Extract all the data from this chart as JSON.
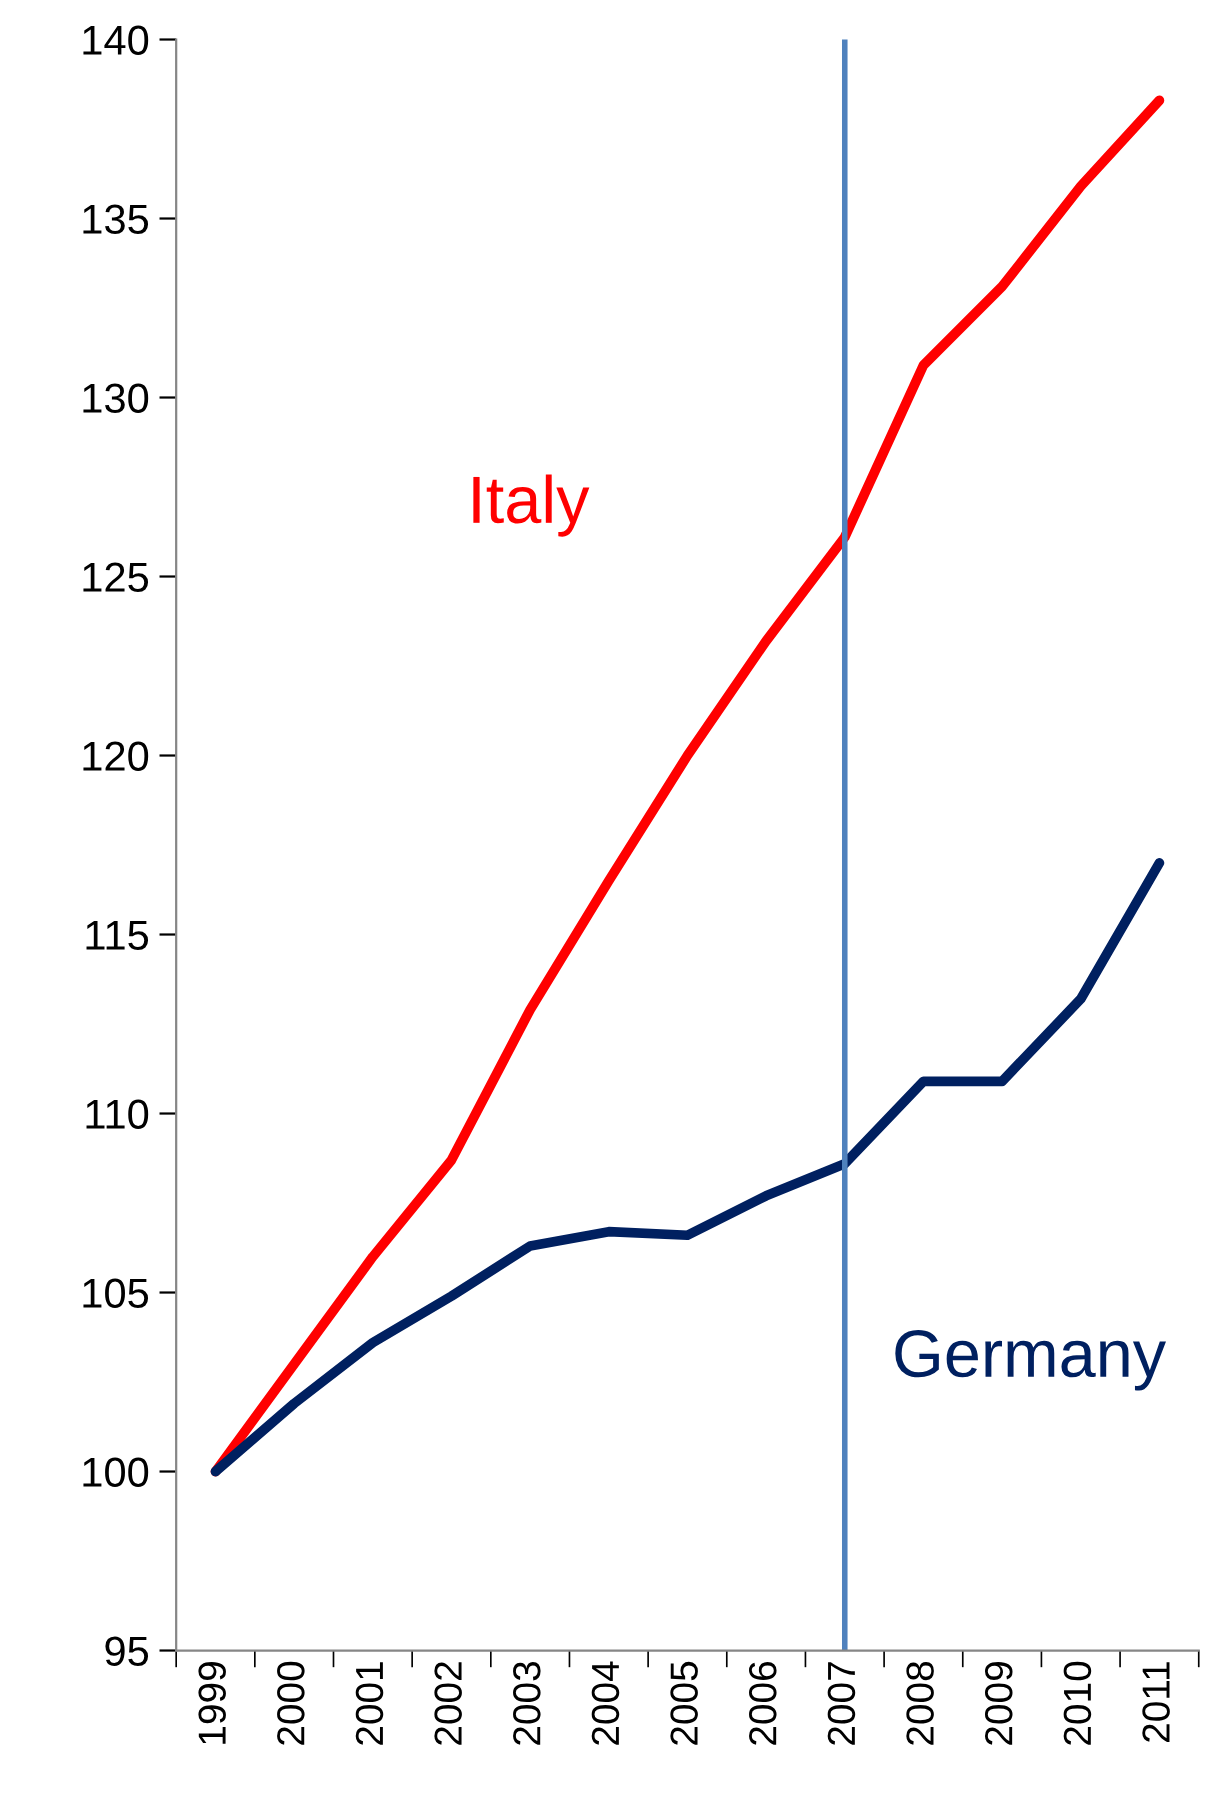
{
  "chart_data": {
    "type": "line",
    "categories": [
      "1999",
      "2000",
      "2001",
      "2002",
      "2003",
      "2004",
      "2005",
      "2006",
      "2007",
      "2008",
      "2009",
      "2010",
      "2011"
    ],
    "series": [
      {
        "name": "Italy",
        "color": "#ff0000",
        "values": [
          100,
          103.0,
          106.0,
          108.7,
          112.9,
          116.5,
          120.0,
          123.2,
          126.1,
          130.9,
          133.1,
          135.9,
          138.3
        ]
      },
      {
        "name": "Germany",
        "color": "#002060",
        "values": [
          100,
          101.9,
          103.6,
          104.9,
          106.3,
          106.7,
          106.6,
          107.7,
          108.6,
          110.9,
          110.9,
          113.2,
          117.0
        ]
      }
    ],
    "ylim": [
      95,
      140
    ],
    "yticks": [
      95,
      100,
      105,
      110,
      115,
      120,
      125,
      130,
      135,
      140
    ],
    "ref_lines": [
      {
        "axis": "x",
        "value": "2007",
        "color": "#4f81bd"
      }
    ],
    "grid": false,
    "legend": false,
    "marker": "none",
    "line_style": "solid"
  }
}
